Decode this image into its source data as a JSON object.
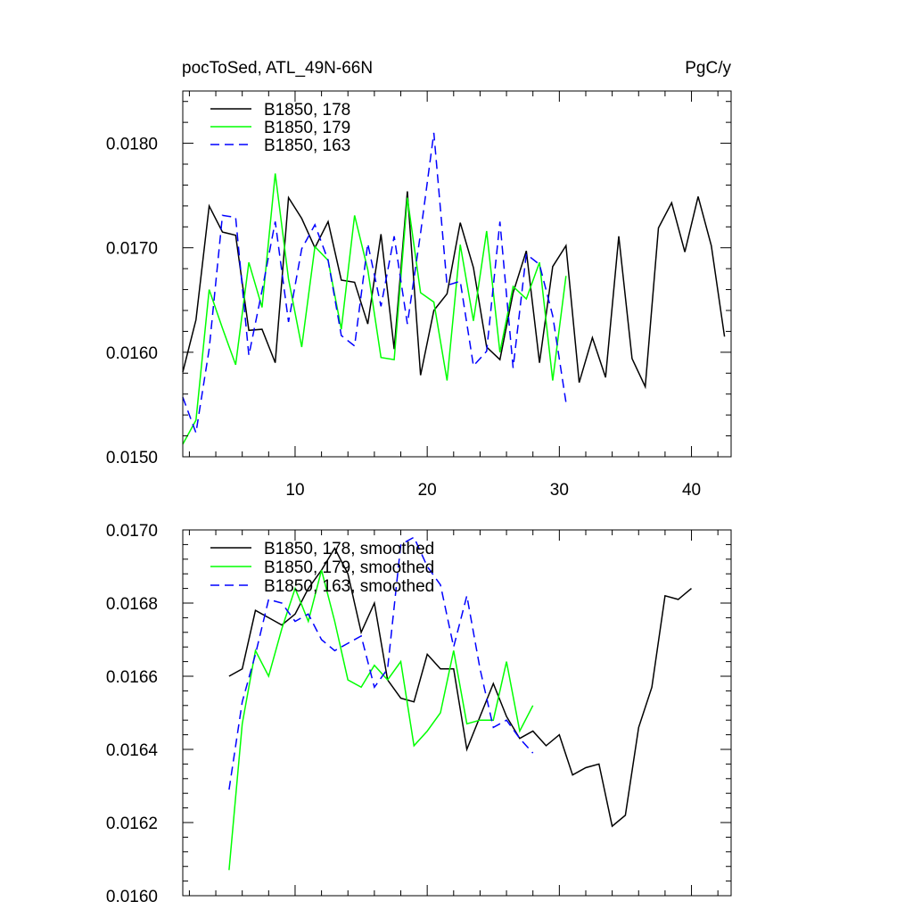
{
  "title_left": "pocToSed, ATL_49N-66N",
  "title_right": "PgC/y",
  "chart_data": [
    {
      "type": "line",
      "xlim": [
        1.5,
        43
      ],
      "ylim": [
        0.015,
        0.0185
      ],
      "xticks": [
        10,
        20,
        30,
        40
      ],
      "xtick_labels": [
        "10",
        "20",
        "30",
        "40"
      ],
      "yticks": [
        0.015,
        0.016,
        0.017,
        0.018
      ],
      "ytick_labels": [
        "0.0150",
        "0.0160",
        "0.0170",
        "0.0180"
      ],
      "legend_position": "top-left",
      "series": [
        {
          "name": "B1850, 178",
          "color": "#000000",
          "dash": "solid",
          "x": [
            1.5,
            2.5,
            3.5,
            4.5,
            5.5,
            6.5,
            7.5,
            8.5,
            9.5,
            10.5,
            11.5,
            12.5,
            13.5,
            14.5,
            15.5,
            16.5,
            17.5,
            18.5,
            19.5,
            20.5,
            21.5,
            22.5,
            23.5,
            24.5,
            25.5,
            26.5,
            27.5,
            28.5,
            29.5,
            30.5,
            31.5,
            32.5,
            33.5,
            34.5,
            35.5,
            36.5,
            37.5,
            38.5,
            39.5,
            40.5,
            41.5,
            42.5
          ],
          "values": [
            0.01581,
            0.01631,
            0.0174,
            0.01715,
            0.01712,
            0.01621,
            0.01622,
            0.0159,
            0.01748,
            0.01728,
            0.017,
            0.01725,
            0.01669,
            0.01667,
            0.01627,
            0.01713,
            0.01603,
            0.01754,
            0.01578,
            0.0164,
            0.01656,
            0.01724,
            0.01681,
            0.01605,
            0.01593,
            0.01657,
            0.01697,
            0.0159,
            0.01682,
            0.01702,
            0.01571,
            0.01614,
            0.01576,
            0.01711,
            0.01594,
            0.01567,
            0.01719,
            0.01743,
            0.01696,
            0.01749,
            0.01702,
            0.01615
          ]
        },
        {
          "name": "B1850, 179",
          "color": "#00ff00",
          "dash": "solid",
          "x": [
            1.5,
            2.5,
            3.5,
            4.5,
            5.5,
            6.5,
            7.5,
            8.5,
            9.5,
            10.5,
            11.5,
            12.5,
            13.5,
            14.5,
            15.5,
            16.5,
            17.5,
            18.5,
            19.5,
            20.5,
            21.5,
            22.5,
            23.5,
            24.5,
            25.5,
            26.5,
            27.5,
            28.5,
            29.5,
            30.5
          ],
          "values": [
            0.01512,
            0.01535,
            0.0166,
            0.01623,
            0.01588,
            0.01686,
            0.01643,
            0.01771,
            0.0167,
            0.01605,
            0.01701,
            0.01688,
            0.01622,
            0.01731,
            0.01679,
            0.01595,
            0.01593,
            0.01748,
            0.01657,
            0.01648,
            0.01573,
            0.01703,
            0.0163,
            0.01716,
            0.016,
            0.01663,
            0.01651,
            0.01686,
            0.01573,
            0.01673
          ]
        },
        {
          "name": "B1850, 163",
          "color": "#0000ff",
          "dash": "dashed",
          "x": [
            1.5,
            2.5,
            3.5,
            4.5,
            5.5,
            6.5,
            7.5,
            8.5,
            9.5,
            10.5,
            11.5,
            12.5,
            13.5,
            14.5,
            15.5,
            16.5,
            17.5,
            18.5,
            19.5,
            20.5,
            21.5,
            22.5,
            23.5,
            24.5,
            25.5,
            26.5,
            27.5,
            28.5,
            29.5,
            30.5
          ],
          "values": [
            0.01557,
            0.01523,
            0.01603,
            0.01731,
            0.01729,
            0.01597,
            0.01659,
            0.01725,
            0.01629,
            0.01699,
            0.01722,
            0.01688,
            0.01616,
            0.01606,
            0.01704,
            0.01644,
            0.01711,
            0.01627,
            0.01714,
            0.0181,
            0.01664,
            0.01668,
            0.01587,
            0.01601,
            0.01725,
            0.01585,
            0.01694,
            0.01684,
            0.01635,
            0.01552
          ]
        }
      ]
    },
    {
      "type": "line",
      "xlim": [
        1.5,
        43
      ],
      "ylim": [
        0.016,
        0.017
      ],
      "xticks": [
        10,
        20,
        30,
        40
      ],
      "yticks": [
        0.016,
        0.0162,
        0.0164,
        0.0166,
        0.0168,
        0.017
      ],
      "ytick_labels": [
        "0.0160",
        "0.0162",
        "0.0164",
        "0.0166",
        "0.0168",
        "0.0170"
      ],
      "legend_position": "top-left",
      "series": [
        {
          "name": "B1850, 178, smoothed",
          "color": "#000000",
          "dash": "solid",
          "x": [
            5,
            6,
            7,
            8,
            9,
            10,
            11,
            12,
            13,
            14,
            15,
            16,
            17,
            18,
            19,
            20,
            21,
            22,
            23,
            24,
            25,
            26,
            27,
            28,
            29,
            30,
            31,
            32,
            33,
            34,
            35,
            36,
            37,
            38,
            39,
            40
          ],
          "values": [
            0.0166,
            0.01662,
            0.01678,
            0.01676,
            0.01674,
            0.01677,
            0.01684,
            0.01689,
            0.01695,
            0.01688,
            0.01672,
            0.0168,
            0.01659,
            0.01654,
            0.01653,
            0.01666,
            0.01662,
            0.01662,
            0.0164,
            0.01649,
            0.01658,
            0.01649,
            0.01643,
            0.01645,
            0.01641,
            0.01644,
            0.01633,
            0.01635,
            0.01636,
            0.01619,
            0.01622,
            0.01646,
            0.01657,
            0.01682,
            0.01681,
            0.01684
          ]
        },
        {
          "name": "B1850, 179, smoothed",
          "color": "#00ff00",
          "dash": "solid",
          "x": [
            5,
            6,
            7,
            8,
            9,
            10,
            11,
            12,
            13,
            14,
            15,
            16,
            17,
            18,
            19,
            20,
            21,
            22,
            23,
            24,
            25,
            26,
            27,
            28
          ],
          "values": [
            0.01607,
            0.01647,
            0.01667,
            0.0166,
            0.01673,
            0.01684,
            0.01675,
            0.01689,
            0.01675,
            0.01659,
            0.01657,
            0.01663,
            0.01659,
            0.01664,
            0.01641,
            0.01645,
            0.0165,
            0.01667,
            0.01647,
            0.01648,
            0.01648,
            0.01664,
            0.01645,
            0.01652
          ]
        },
        {
          "name": "B1850, 163, smoothed",
          "color": "#0000ff",
          "dash": "dashed",
          "x": [
            5,
            6,
            7,
            8,
            9,
            10,
            11,
            12,
            13,
            14,
            15,
            16,
            17,
            18,
            19,
            20,
            21,
            22,
            23,
            24,
            25,
            26,
            27,
            28
          ],
          "values": [
            0.01629,
            0.01653,
            0.01666,
            0.01681,
            0.0168,
            0.01675,
            0.01677,
            0.0167,
            0.01667,
            0.01669,
            0.01671,
            0.01657,
            0.01662,
            0.01696,
            0.01698,
            0.0169,
            0.01685,
            0.01668,
            0.01682,
            0.01662,
            0.01646,
            0.01648,
            0.01643,
            0.01639
          ]
        }
      ]
    }
  ]
}
